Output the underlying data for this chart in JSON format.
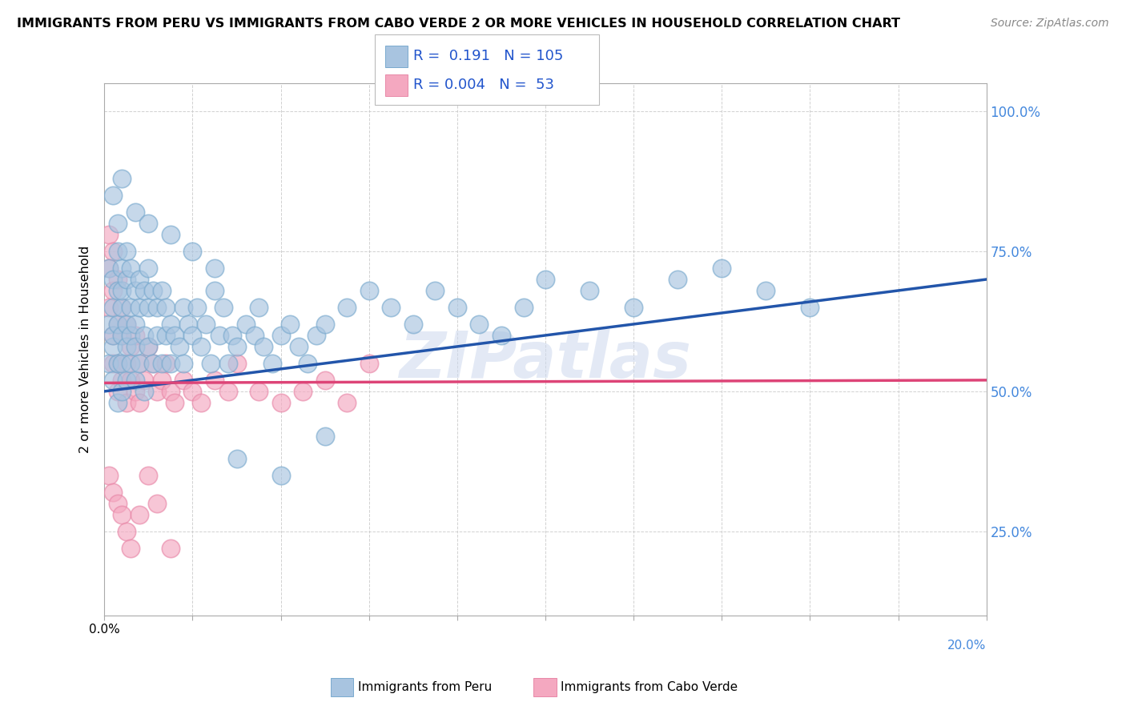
{
  "title": "IMMIGRANTS FROM PERU VS IMMIGRANTS FROM CABO VERDE 2 OR MORE VEHICLES IN HOUSEHOLD CORRELATION CHART",
  "source": "Source: ZipAtlas.com",
  "ylabel": "2 or more Vehicles in Household",
  "x_min": 0.0,
  "x_max": 0.2,
  "y_min": 0.1,
  "y_max": 1.05,
  "yticks": [
    0.25,
    0.5,
    0.75,
    1.0
  ],
  "ytick_labels": [
    "25.0%",
    "50.0%",
    "75.0%",
    "100.0%"
  ],
  "xticks": [
    0.0,
    0.02,
    0.04,
    0.06,
    0.08,
    0.1,
    0.12,
    0.14,
    0.16,
    0.18,
    0.2
  ],
  "xtick_labels": [
    "0.0%",
    "",
    "",
    "",
    "",
    "",
    "",
    "",
    "",
    "",
    "20.0%"
  ],
  "xticks_labeled": [
    0.0,
    0.2
  ],
  "xticks_labeled_labels": [
    "0.0%",
    "20.0%"
  ],
  "blue_R": 0.191,
  "blue_N": 105,
  "pink_R": 0.004,
  "pink_N": 53,
  "blue_color": "#a8c4e0",
  "pink_color": "#f4a8c0",
  "blue_edge_color": "#7aaace",
  "pink_edge_color": "#e888a8",
  "blue_line_color": "#2255aa",
  "pink_line_color": "#dd4477",
  "legend_label_blue": "Immigrants from Peru",
  "legend_label_pink": "Immigrants from Cabo Verde",
  "watermark": "ZIPatlas",
  "blue_trend_x0": 0.0,
  "blue_trend_y0": 0.5,
  "blue_trend_x1": 0.2,
  "blue_trend_y1": 0.7,
  "pink_trend_x0": 0.0,
  "pink_trend_y0": 0.515,
  "pink_trend_x1": 0.2,
  "pink_trend_y1": 0.52,
  "blue_scatter_x": [
    0.001,
    0.001,
    0.001,
    0.002,
    0.002,
    0.002,
    0.002,
    0.002,
    0.003,
    0.003,
    0.003,
    0.003,
    0.003,
    0.003,
    0.004,
    0.004,
    0.004,
    0.004,
    0.004,
    0.004,
    0.005,
    0.005,
    0.005,
    0.005,
    0.005,
    0.006,
    0.006,
    0.006,
    0.006,
    0.007,
    0.007,
    0.007,
    0.007,
    0.008,
    0.008,
    0.008,
    0.009,
    0.009,
    0.009,
    0.01,
    0.01,
    0.01,
    0.011,
    0.011,
    0.012,
    0.012,
    0.013,
    0.013,
    0.014,
    0.014,
    0.015,
    0.015,
    0.016,
    0.017,
    0.018,
    0.018,
    0.019,
    0.02,
    0.021,
    0.022,
    0.023,
    0.024,
    0.025,
    0.026,
    0.027,
    0.028,
    0.029,
    0.03,
    0.032,
    0.034,
    0.035,
    0.036,
    0.038,
    0.04,
    0.042,
    0.044,
    0.046,
    0.048,
    0.05,
    0.055,
    0.06,
    0.065,
    0.07,
    0.075,
    0.08,
    0.085,
    0.09,
    0.095,
    0.1,
    0.11,
    0.12,
    0.13,
    0.14,
    0.15,
    0.16,
    0.002,
    0.004,
    0.007,
    0.01,
    0.015,
    0.02,
    0.025,
    0.03,
    0.04,
    0.05
  ],
  "blue_scatter_y": [
    0.62,
    0.55,
    0.72,
    0.58,
    0.65,
    0.7,
    0.6,
    0.52,
    0.68,
    0.55,
    0.75,
    0.62,
    0.8,
    0.48,
    0.65,
    0.72,
    0.55,
    0.6,
    0.5,
    0.68,
    0.7,
    0.62,
    0.58,
    0.75,
    0.52,
    0.65,
    0.72,
    0.55,
    0.6,
    0.68,
    0.62,
    0.58,
    0.52,
    0.7,
    0.65,
    0.55,
    0.68,
    0.6,
    0.5,
    0.65,
    0.72,
    0.58,
    0.68,
    0.55,
    0.65,
    0.6,
    0.68,
    0.55,
    0.65,
    0.6,
    0.62,
    0.55,
    0.6,
    0.58,
    0.65,
    0.55,
    0.62,
    0.6,
    0.65,
    0.58,
    0.62,
    0.55,
    0.68,
    0.6,
    0.65,
    0.55,
    0.6,
    0.58,
    0.62,
    0.6,
    0.65,
    0.58,
    0.55,
    0.6,
    0.62,
    0.58,
    0.55,
    0.6,
    0.62,
    0.65,
    0.68,
    0.65,
    0.62,
    0.68,
    0.65,
    0.62,
    0.6,
    0.65,
    0.7,
    0.68,
    0.65,
    0.7,
    0.72,
    0.68,
    0.65,
    0.85,
    0.88,
    0.82,
    0.8,
    0.78,
    0.75,
    0.72,
    0.38,
    0.35,
    0.42
  ],
  "pink_scatter_x": [
    0.001,
    0.001,
    0.001,
    0.002,
    0.002,
    0.002,
    0.002,
    0.003,
    0.003,
    0.003,
    0.003,
    0.004,
    0.004,
    0.004,
    0.005,
    0.005,
    0.005,
    0.006,
    0.006,
    0.007,
    0.007,
    0.008,
    0.008,
    0.009,
    0.01,
    0.011,
    0.012,
    0.013,
    0.014,
    0.015,
    0.016,
    0.018,
    0.02,
    0.022,
    0.025,
    0.028,
    0.03,
    0.035,
    0.04,
    0.045,
    0.05,
    0.055,
    0.06,
    0.001,
    0.002,
    0.003,
    0.004,
    0.005,
    0.006,
    0.008,
    0.01,
    0.012,
    0.015
  ],
  "pink_scatter_y": [
    0.72,
    0.65,
    0.78,
    0.68,
    0.75,
    0.6,
    0.55,
    0.7,
    0.62,
    0.55,
    0.5,
    0.65,
    0.6,
    0.52,
    0.62,
    0.55,
    0.48,
    0.58,
    0.52,
    0.6,
    0.5,
    0.55,
    0.48,
    0.52,
    0.58,
    0.55,
    0.5,
    0.52,
    0.55,
    0.5,
    0.48,
    0.52,
    0.5,
    0.48,
    0.52,
    0.5,
    0.55,
    0.5,
    0.48,
    0.5,
    0.52,
    0.48,
    0.55,
    0.35,
    0.32,
    0.3,
    0.28,
    0.25,
    0.22,
    0.28,
    0.35,
    0.3,
    0.22
  ]
}
